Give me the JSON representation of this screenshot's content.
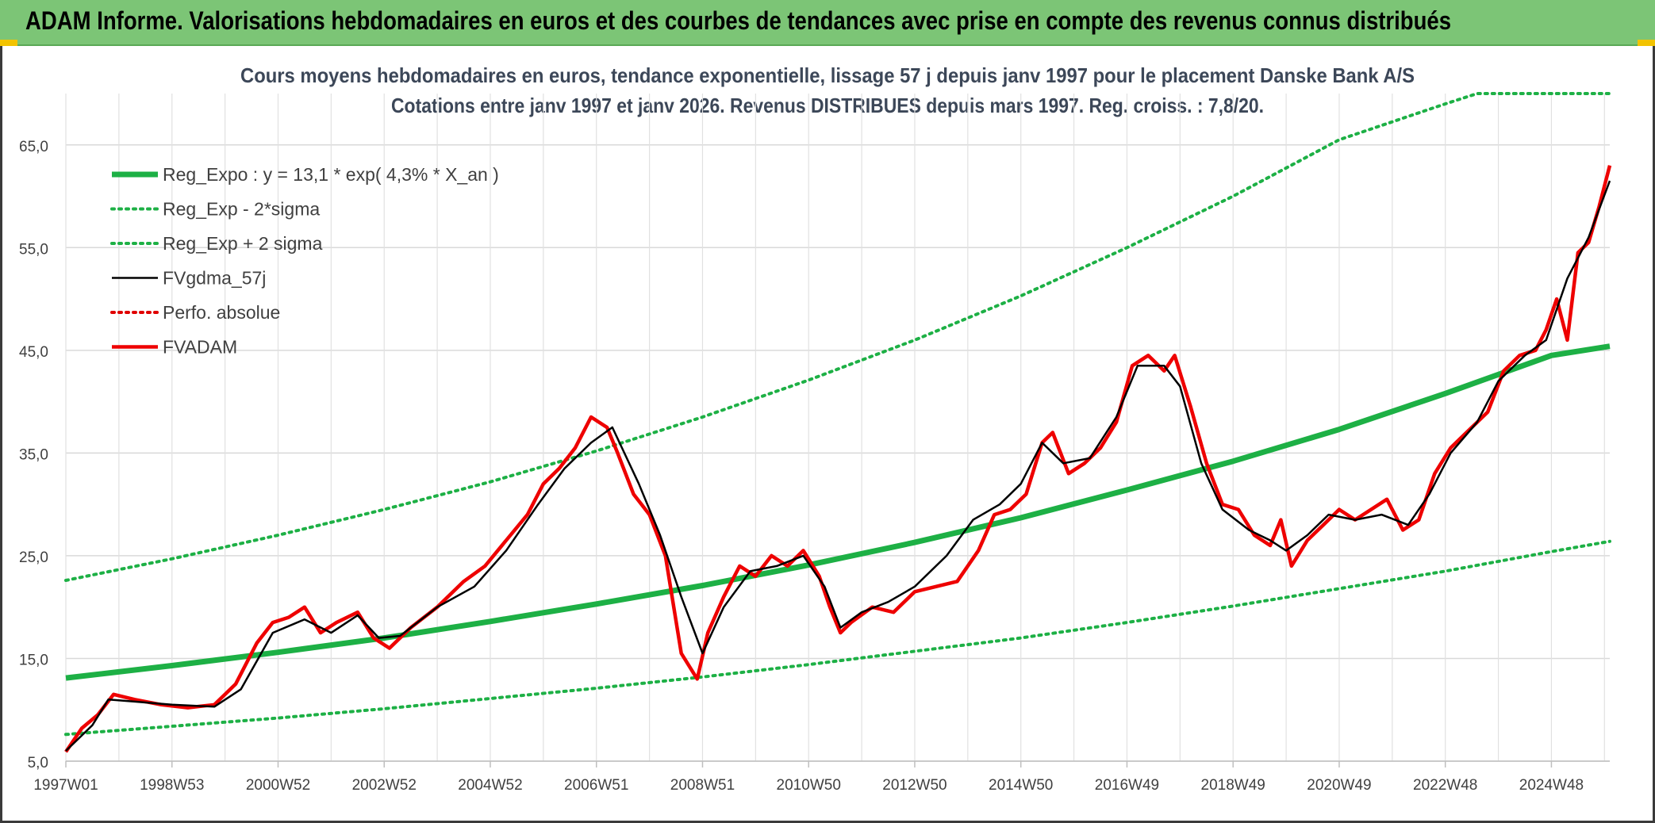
{
  "banner": {
    "title": "ADAM Informe. Valorisations hebdomadaires en euros et des courbes de tendances avec prise en compte des revenus connus distribués",
    "background": "#7cc576",
    "corner_color": "#f2c300"
  },
  "chart_data": {
    "type": "line",
    "title": "Cours moyens hebdomadaires en euros, tendance exponentielle, lissage 57 j depuis janv 1997 pour le placement Danske Bank A/S",
    "subtitle": "Cotations entre janv 1997 et janv 2026. Revenus DISTRIBUES depuis mars 1997. Reg. croiss. : 7,8/20.",
    "xlabel": "",
    "ylabel": "",
    "ylim": [
      5,
      70
    ],
    "x_range": [
      1997.0,
      2026.1
    ],
    "grid": true,
    "legend_position": "top-left",
    "yticks": [
      5,
      15,
      25,
      35,
      45,
      55,
      65
    ],
    "ytick_labels": [
      "5,0",
      "15,0",
      "25,0",
      "35,0",
      "45,0",
      "55,0",
      "65,0"
    ],
    "xticks": [
      1997.0,
      1999.0,
      2001.0,
      2003.0,
      2005.0,
      2007.0,
      2009.0,
      2011.0,
      2013.0,
      2015.0,
      2017.0,
      2019.0,
      2021.0,
      2023.0,
      2025.0
    ],
    "xtick_labels": [
      "1997W01",
      "1998W53",
      "2000W52",
      "2002W52",
      "2004W52",
      "2006W51",
      "2008W51",
      "2010W50",
      "2012W50",
      "2014W50",
      "2016W49",
      "2018W49",
      "2020W49",
      "2022W48",
      "2024W48"
    ],
    "series": [
      {
        "name": "Reg_Expo : y = 13,1 * exp( 4,3% *  X_an )",
        "color": "#1db045",
        "style": "solid-thick",
        "x": [
          1997.0,
          1999.0,
          2001.0,
          2003.0,
          2005.0,
          2007.0,
          2009.0,
          2011.0,
          2013.0,
          2015.0,
          2017.0,
          2019.0,
          2021.0,
          2023.0,
          2025.0,
          2026.1
        ],
        "y": [
          13.1,
          14.3,
          15.6,
          17.0,
          18.6,
          20.3,
          22.1,
          24.1,
          26.3,
          28.7,
          31.4,
          34.2,
          37.3,
          40.8,
          44.5,
          45.4
        ]
      },
      {
        "name": "Reg_Exp - 2*sigma",
        "color": "#1db045",
        "style": "dotted",
        "x": [
          1997.0,
          1999.0,
          2001.0,
          2003.0,
          2005.0,
          2007.0,
          2009.0,
          2011.0,
          2013.0,
          2015.0,
          2017.0,
          2019.0,
          2021.0,
          2023.0,
          2025.0,
          2026.1
        ],
        "y": [
          7.6,
          8.4,
          9.2,
          10.1,
          11.1,
          12.1,
          13.2,
          14.4,
          15.7,
          17.0,
          18.5,
          20.1,
          21.8,
          23.5,
          25.4,
          26.4
        ]
      },
      {
        "name": "Reg_Exp + 2 sigma",
        "color": "#1db045",
        "style": "dotted",
        "x": [
          1997.0,
          1999.0,
          2001.0,
          2003.0,
          2005.0,
          2007.0,
          2009.0,
          2011.0,
          2013.0,
          2015.0,
          2017.0,
          2019.0,
          2021.0,
          2023.0,
          2023.6,
          2026.1
        ],
        "y": [
          22.6,
          24.7,
          27.0,
          29.5,
          32.2,
          35.2,
          38.5,
          42.1,
          46.0,
          50.3,
          55.0,
          60.0,
          65.5,
          69.0,
          70.0,
          70.0
        ]
      },
      {
        "name": "FVgdma_57j",
        "color": "#000000",
        "style": "solid-thin",
        "x": [
          1997.0,
          1997.5,
          1997.8,
          1998.3,
          1999.0,
          1999.8,
          2000.3,
          2000.9,
          2001.5,
          2002.0,
          2002.5,
          2002.9,
          2003.3,
          2004.0,
          2004.7,
          2005.3,
          2005.9,
          2006.4,
          2006.9,
          2007.3,
          2007.8,
          2008.2,
          2008.6,
          2009.0,
          2009.4,
          2009.9,
          2010.4,
          2010.9,
          2011.3,
          2011.6,
          2012.0,
          2012.5,
          2013.0,
          2013.6,
          2014.1,
          2014.6,
          2015.0,
          2015.4,
          2015.8,
          2016.3,
          2016.8,
          2017.2,
          2017.7,
          2018.0,
          2018.4,
          2018.8,
          2019.3,
          2019.7,
          2020.0,
          2020.4,
          2020.8,
          2021.3,
          2021.8,
          2022.3,
          2022.7,
          2023.1,
          2023.6,
          2024.0,
          2024.5,
          2024.9,
          2025.3,
          2025.7,
          2026.1
        ],
        "y": [
          6.0,
          8.5,
          11.0,
          10.8,
          10.5,
          10.3,
          12.0,
          17.5,
          18.8,
          17.5,
          19.2,
          17.0,
          17.2,
          20.0,
          22.0,
          25.5,
          30.0,
          33.5,
          36.0,
          37.5,
          32.0,
          27.0,
          21.0,
          15.5,
          20.0,
          23.5,
          24.0,
          25.0,
          22.0,
          18.0,
          19.5,
          20.5,
          22.0,
          25.0,
          28.5,
          30.0,
          32.0,
          36.0,
          34.0,
          34.5,
          38.5,
          43.5,
          43.5,
          41.5,
          34.0,
          29.5,
          27.5,
          26.5,
          25.5,
          27.0,
          29.0,
          28.5,
          29.0,
          28.0,
          31.0,
          35.0,
          38.0,
          42.0,
          44.5,
          46.0,
          52.0,
          56.0,
          61.5
        ]
      },
      {
        "name": "Perfo. absolue",
        "color": "#e00000",
        "style": "dotted",
        "x": [],
        "y": []
      },
      {
        "name": "FVADAM",
        "color": "#ee0000",
        "style": "solid-thick",
        "x": [
          1997.0,
          1997.3,
          1997.6,
          1997.9,
          1998.3,
          1998.8,
          1999.3,
          1999.8,
          2000.2,
          2000.6,
          2000.9,
          2001.2,
          2001.5,
          2001.8,
          2002.1,
          2002.5,
          2002.8,
          2003.1,
          2003.5,
          2004.0,
          2004.5,
          2004.9,
          2005.3,
          2005.7,
          2006.0,
          2006.3,
          2006.6,
          2006.9,
          2007.2,
          2007.4,
          2007.7,
          2008.0,
          2008.3,
          2008.6,
          2008.9,
          2009.1,
          2009.4,
          2009.7,
          2010.0,
          2010.3,
          2010.6,
          2010.9,
          2011.2,
          2011.4,
          2011.6,
          2011.8,
          2012.2,
          2012.6,
          2013.0,
          2013.4,
          2013.8,
          2014.2,
          2014.5,
          2014.8,
          2015.1,
          2015.4,
          2015.6,
          2015.9,
          2016.2,
          2016.5,
          2016.8,
          2017.1,
          2017.4,
          2017.7,
          2017.9,
          2018.2,
          2018.5,
          2018.8,
          2019.1,
          2019.4,
          2019.7,
          2019.9,
          2020.1,
          2020.4,
          2020.7,
          2021.0,
          2021.3,
          2021.6,
          2021.9,
          2022.2,
          2022.5,
          2022.8,
          2023.1,
          2023.4,
          2023.8,
          2024.1,
          2024.4,
          2024.7,
          2024.9,
          2025.1,
          2025.3,
          2025.5,
          2025.7,
          2025.9,
          2026.1
        ],
        "y": [
          5.9,
          8.2,
          9.5,
          11.5,
          11.0,
          10.5,
          10.2,
          10.5,
          12.5,
          16.5,
          18.5,
          19.0,
          20.0,
          17.5,
          18.5,
          19.5,
          17.0,
          16.0,
          18.0,
          20.0,
          22.5,
          24.0,
          26.5,
          29.0,
          32.0,
          33.5,
          35.5,
          38.5,
          37.5,
          35.0,
          31.0,
          29.0,
          25.0,
          15.5,
          13.0,
          17.5,
          21.0,
          24.0,
          23.0,
          25.0,
          24.0,
          25.5,
          23.0,
          20.0,
          17.5,
          18.5,
          20.0,
          19.5,
          21.5,
          22.0,
          22.5,
          25.5,
          29.0,
          29.5,
          31.0,
          36.0,
          37.0,
          33.0,
          34.0,
          35.5,
          38.0,
          43.5,
          44.5,
          43.0,
          44.5,
          39.5,
          34.0,
          30.0,
          29.5,
          27.0,
          26.0,
          28.5,
          24.0,
          26.5,
          28.0,
          29.5,
          28.5,
          29.5,
          30.5,
          27.5,
          28.5,
          33.0,
          35.5,
          37.0,
          39.0,
          43.0,
          44.5,
          45.0,
          47.0,
          50.0,
          46.0,
          54.5,
          55.5,
          59.0,
          63.0
        ]
      }
    ]
  }
}
